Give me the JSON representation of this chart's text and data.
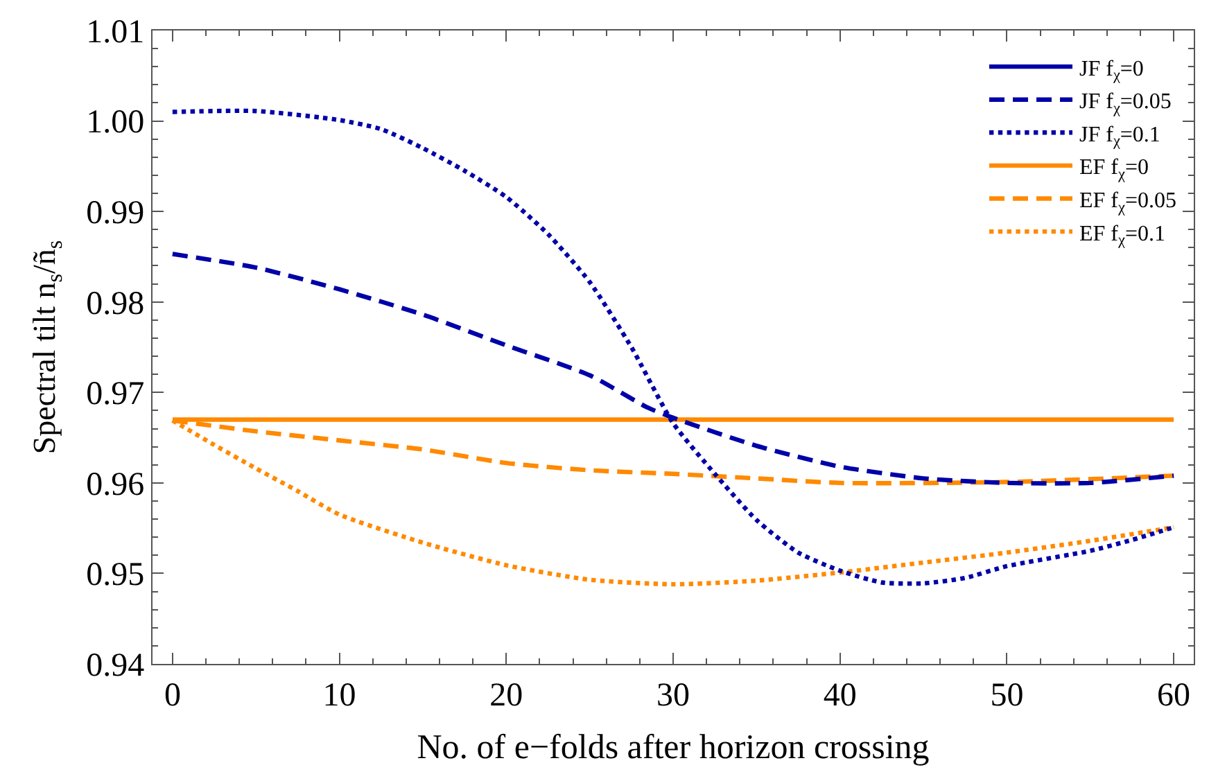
{
  "chart_data": {
    "type": "line",
    "xlabel": "No. of e−folds after horizon crossing",
    "ylabel": "Spectral tilt n$_{s}$/ñ$_{s}$",
    "xlim": [
      -1.2,
      61.2
    ],
    "xticks": [
      0,
      10,
      20,
      30,
      40,
      50,
      60
    ],
    "ylim": [
      0.94,
      1.01
    ],
    "yticks": [
      0.94,
      0.95,
      0.96,
      0.97,
      0.98,
      0.99,
      {
        "value": 1.0,
        "label": "1.00"
      },
      1.01
    ],
    "legend": "top right",
    "marker": "none",
    "series": [
      {
        "name": "JF f$_{χ}$=0",
        "color": "#0000a8",
        "line_style": "solid"
      },
      {
        "name": "JF f$_{χ}$=0.05",
        "color": "#0000a8",
        "line_style": "dashed",
        "x": [
          0,
          5,
          10,
          15,
          20,
          25,
          28.5,
          30,
          35,
          40,
          45,
          50,
          55,
          60
        ],
        "values": [
          0.9853,
          0.9838,
          0.9814,
          0.9786,
          0.9752,
          0.9719,
          0.9683,
          0.9672,
          0.9641,
          0.9618,
          0.9605,
          0.96,
          0.96,
          0.9608
        ]
      },
      {
        "name": "JF f$_{χ}$=0.1",
        "color": "#0000a8",
        "line_style": "dotted",
        "x": [
          0,
          5,
          10,
          12.5,
          15,
          17.5,
          20,
          22.5,
          25,
          27.5,
          30,
          32.5,
          35,
          37.5,
          40,
          42.5,
          45,
          47.5,
          50,
          55,
          57.5,
          60
        ],
        "values": [
          1.001,
          1.0011,
          1.0001,
          0.9991,
          0.997,
          0.9945,
          0.9916,
          0.9875,
          0.9822,
          0.975,
          0.9666,
          0.961,
          0.9559,
          0.9523,
          0.9503,
          0.949,
          0.9489,
          0.9495,
          0.9508,
          0.9525,
          0.9537,
          0.9551
        ]
      },
      {
        "name": "EF f$_{χ}$=0",
        "color": "#ff8a00",
        "line_style": "solid",
        "x": [
          0,
          60
        ],
        "values": [
          0.967,
          0.967
        ]
      },
      {
        "name": "EF f$_{χ}$=0.05",
        "color": "#ff8a00",
        "line_style": "dashed",
        "x": [
          0,
          5,
          10,
          15,
          20,
          25,
          30,
          35,
          40,
          50,
          60
        ],
        "values": [
          0.9669,
          0.9657,
          0.9647,
          0.9637,
          0.9622,
          0.9614,
          0.961,
          0.9605,
          0.96,
          0.9601,
          0.9608
        ]
      },
      {
        "name": "EF f$_{χ}$=0.1",
        "color": "#ff8a00",
        "line_style": "dotted",
        "x": [
          0,
          2.5,
          5,
          7.5,
          10,
          15,
          20,
          25,
          30,
          35,
          40,
          45,
          50,
          55,
          60
        ],
        "values": [
          0.9669,
          0.9642,
          0.9616,
          0.9591,
          0.9565,
          0.9534,
          0.9509,
          0.9493,
          0.9488,
          0.9492,
          0.9501,
          0.9512,
          0.9523,
          0.9536,
          0.9551
        ]
      }
    ]
  }
}
